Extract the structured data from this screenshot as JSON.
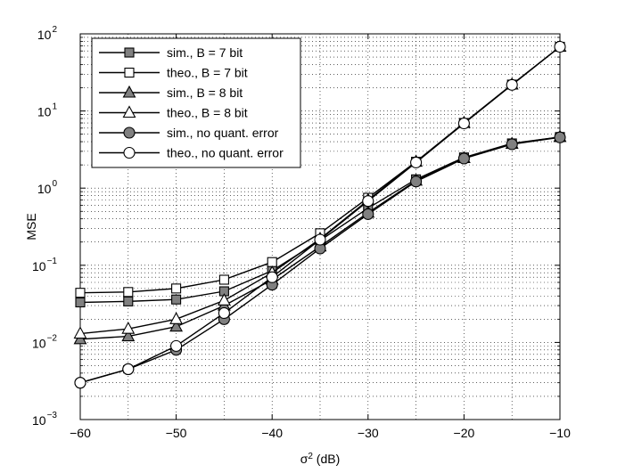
{
  "chart_data": {
    "type": "line",
    "xlabel_base": "σ",
    "xlabel_sup": "2",
    "xlabel_unit": " (dB)",
    "ylabel": "MSE",
    "xlim": [
      -60,
      -10
    ],
    "ylim": [
      0.001,
      100
    ],
    "y_scale": "log",
    "grid": true,
    "legend_position": "top-left",
    "x_ticks": [
      -60,
      -50,
      -40,
      -30,
      -20,
      -10
    ],
    "x_tick_labels": [
      "−60",
      "−50",
      "−40",
      "−30",
      "−20",
      "−10"
    ],
    "y_tick_bases": [
      "10",
      "10",
      "10",
      "10",
      "10",
      "10"
    ],
    "y_tick_exponents": [
      "−3",
      "−2",
      "−1",
      "0",
      "1",
      "2"
    ],
    "x": [
      -60,
      -55,
      -50,
      -45,
      -40,
      -35,
      -30,
      -25,
      -20,
      -15,
      -10
    ],
    "series": [
      {
        "name": "sim., B = 7 bit",
        "marker": "square",
        "fill": "#808080",
        "values": [
          0.033,
          0.034,
          0.036,
          0.046,
          0.085,
          0.21,
          0.55,
          1.3,
          2.5,
          3.8,
          4.6
        ]
      },
      {
        "name": "theo., B = 7 bit",
        "marker": "square",
        "fill": "#ffffff",
        "values": [
          0.044,
          0.045,
          0.05,
          0.065,
          0.11,
          0.26,
          0.75,
          2.2,
          7.0,
          22,
          68
        ]
      },
      {
        "name": "sim., B = 8 bit",
        "marker": "triangle",
        "fill": "#808080",
        "values": [
          0.011,
          0.012,
          0.016,
          0.03,
          0.065,
          0.175,
          0.48,
          1.25,
          2.45,
          3.75,
          4.6
        ]
      },
      {
        "name": "theo., B = 8 bit",
        "marker": "triangle",
        "fill": "#ffffff",
        "values": [
          0.013,
          0.015,
          0.02,
          0.035,
          0.08,
          0.22,
          0.7,
          2.2,
          7.0,
          22,
          68
        ]
      },
      {
        "name": "sim., no quant. error",
        "marker": "circle",
        "fill": "#808080",
        "values": [
          0.003,
          0.0045,
          0.008,
          0.02,
          0.056,
          0.165,
          0.46,
          1.22,
          2.42,
          3.7,
          4.55
        ]
      },
      {
        "name": "theo., no quant. error",
        "marker": "circle",
        "fill": "#ffffff",
        "values": [
          0.003,
          0.0045,
          0.009,
          0.024,
          0.07,
          0.215,
          0.68,
          2.15,
          6.9,
          21.8,
          68
        ]
      }
    ]
  }
}
